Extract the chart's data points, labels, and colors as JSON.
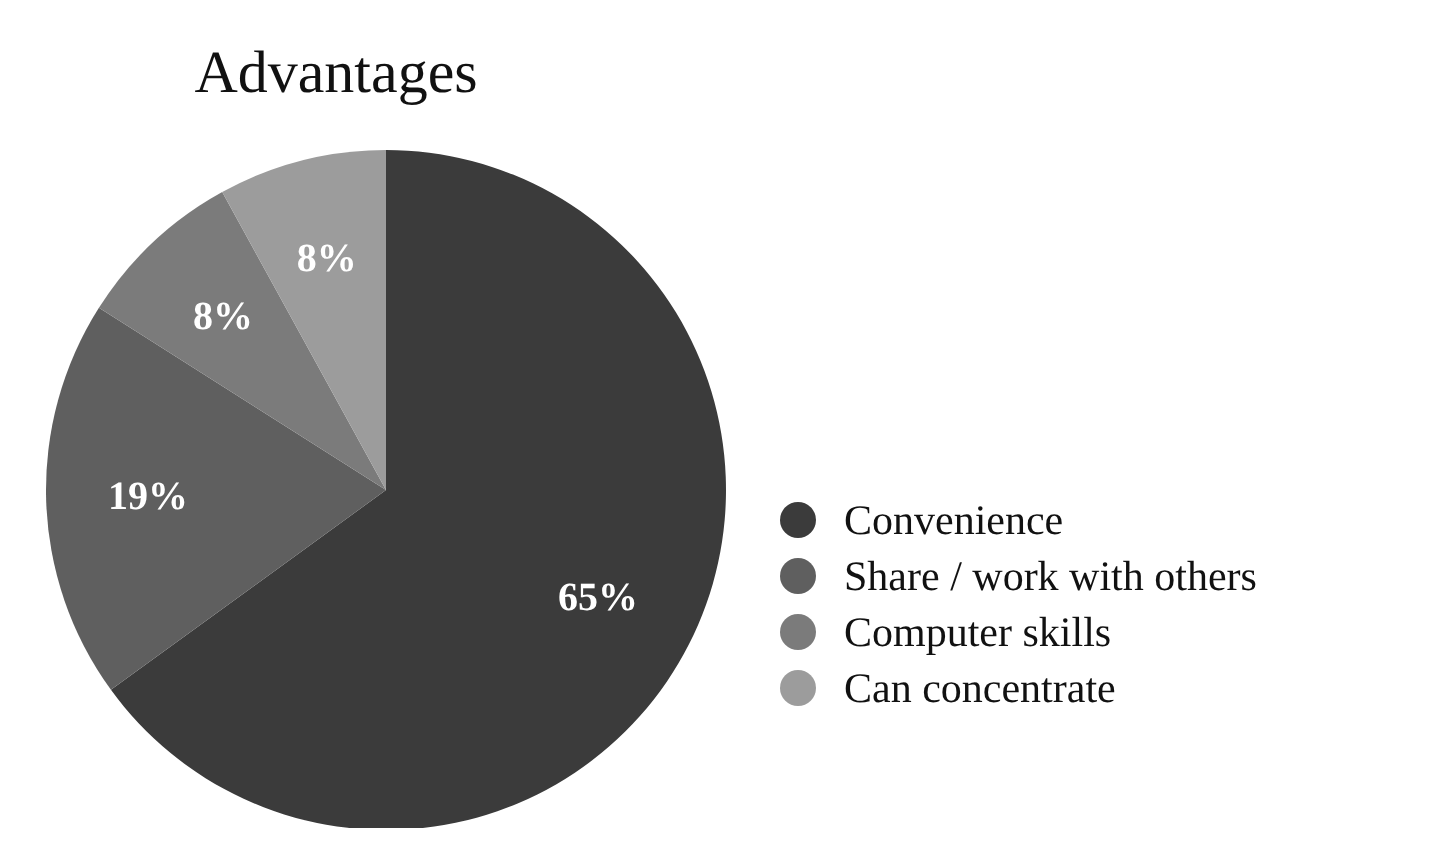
{
  "chart_data": {
    "type": "pie",
    "title": "Advantages",
    "categories": [
      "Convenience",
      "Share / work with others",
      "Computer skills",
      "Can concentrate"
    ],
    "values": [
      65,
      19,
      8,
      8
    ],
    "colors": [
      "#3b3b3b",
      "#5f5f5f",
      "#7b7b7b",
      "#9c9c9c"
    ],
    "value_labels": [
      "65%",
      "19%",
      "8%",
      "8%"
    ],
    "legend": "right"
  }
}
